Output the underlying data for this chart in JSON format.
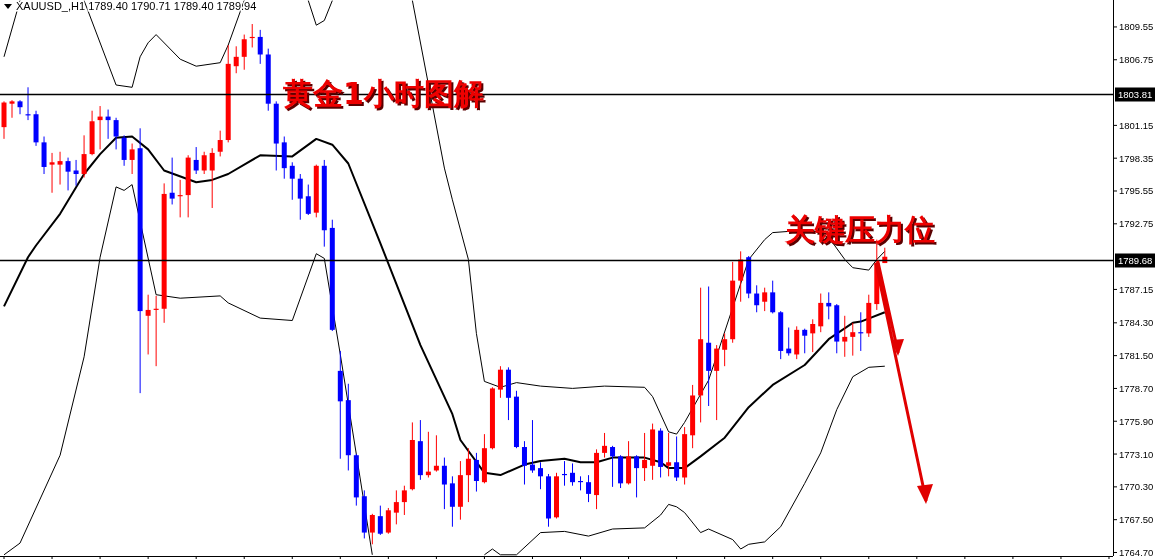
{
  "chart_data": {
    "type": "candlestick",
    "title": "XAUUSD_,H1  1789.40 1790.71 1789.40 1789.94",
    "annotations": [
      "黄金1小时图解",
      "关键压力位"
    ],
    "categories": [
      null,
      null,
      null,
      null,
      null,
      null,
      null,
      null,
      null,
      null,
      null,
      null,
      null,
      null,
      null,
      null,
      null,
      null,
      null,
      null,
      null,
      null,
      null,
      null,
      null,
      null,
      null,
      null,
      null,
      null,
      null,
      null,
      null,
      null,
      null,
      null,
      null,
      null,
      null,
      null,
      null,
      null,
      null,
      null,
      null,
      null,
      null,
      null,
      null,
      null,
      null,
      null,
      null,
      null,
      null,
      null,
      null,
      null,
      null,
      null,
      null,
      null,
      null,
      null,
      null,
      null,
      null,
      null,
      null,
      null,
      null,
      null,
      null,
      null,
      null,
      null,
      null,
      null,
      null,
      null,
      null,
      null,
      null,
      null,
      null,
      null,
      null,
      null,
      null,
      null,
      null,
      null,
      null,
      null,
      null,
      null,
      null,
      null,
      null,
      null,
      null,
      null,
      null,
      null,
      null,
      null,
      null,
      null,
      null,
      null,
      null,
      null,
      null,
      null,
      null,
      null,
      null,
      null,
      null,
      null,
      null,
      null,
      null,
      null,
      null,
      null,
      null,
      null,
      null,
      null,
      null,
      null,
      null,
      null,
      null,
      null,
      null,
      null,
      null
    ],
    "ohlc": [
      [
        1801.0,
        1803.2,
        1800.0,
        1803.1
      ],
      [
        1803.0,
        1803.3,
        1801.8,
        1803.2
      ],
      [
        1803.2,
        1803.3,
        1802.1,
        1802.7
      ],
      [
        1802.1,
        1804.4,
        1801.6,
        1802.0
      ],
      [
        1802.1,
        1802.4,
        1799.4,
        1799.7
      ],
      [
        1799.7,
        1800.2,
        1797.0,
        1797.6
      ],
      [
        1797.8,
        1798.8,
        1795.4,
        1798.0
      ],
      [
        1797.8,
        1798.9,
        1796.1,
        1798.1
      ],
      [
        1798.1,
        1798.4,
        1795.6,
        1797.2
      ],
      [
        1797.3,
        1798.2,
        1796.0,
        1797.0
      ],
      [
        1797.0,
        1800.3,
        1796.7,
        1798.7
      ],
      [
        1798.7,
        1802.4,
        1798.6,
        1801.5
      ],
      [
        1801.6,
        1802.8,
        1799.1,
        1801.9
      ],
      [
        1801.9,
        1802.5,
        1800.0,
        1801.6
      ],
      [
        1801.6,
        1801.8,
        1799.1,
        1800.2
      ],
      [
        1800.1,
        1800.3,
        1797.7,
        1798.2
      ],
      [
        1798.2,
        1799.6,
        1797.0,
        1799.1
      ],
      [
        1799.2,
        1800.9,
        1778.3,
        1785.3
      ],
      [
        1784.9,
        1786.7,
        1781.6,
        1785.4
      ],
      [
        1785.4,
        1786.6,
        1780.6,
        1785.5
      ],
      [
        1785.5,
        1796.2,
        1784.3,
        1795.3
      ],
      [
        1795.4,
        1798.4,
        1794.4,
        1794.9
      ],
      [
        1795.1,
        1796.5,
        1793.3,
        1795.2
      ],
      [
        1795.2,
        1798.6,
        1793.3,
        1798.4
      ],
      [
        1798.2,
        1799.3,
        1797.0,
        1797.3
      ],
      [
        1797.3,
        1798.9,
        1797.0,
        1798.6
      ],
      [
        1797.3,
        1799.2,
        1794.1,
        1798.8
      ],
      [
        1798.9,
        1800.7,
        1798.5,
        1799.9
      ],
      [
        1799.9,
        1808.0,
        1799.7,
        1806.4
      ],
      [
        1806.2,
        1807.9,
        1805.6,
        1807.0
      ],
      [
        1807.0,
        1808.9,
        1805.9,
        1808.5
      ],
      [
        1808.6,
        1809.8,
        1807.8,
        1808.7
      ],
      [
        1808.7,
        1809.3,
        1806.4,
        1807.2
      ],
      [
        1807.2,
        1807.7,
        1802.4,
        1803.0
      ],
      [
        1803.0,
        1803.2,
        1797.3,
        1799.6
      ],
      [
        1799.7,
        1800.2,
        1796.6,
        1797.5
      ],
      [
        1797.7,
        1798.0,
        1794.8,
        1796.6
      ],
      [
        1796.6,
        1797.0,
        1793.1,
        1794.9
      ],
      [
        1795.1,
        1796.1,
        1793.5,
        1793.6
      ],
      [
        1793.7,
        1797.8,
        1793.3,
        1797.7
      ],
      [
        1797.7,
        1798.2,
        1790.8,
        1792.2
      ],
      [
        1792.4,
        1793.1,
        1783.6,
        1783.7
      ],
      [
        1780.2,
        1781.9,
        1772.7,
        1777.6
      ],
      [
        1777.7,
        1779.1,
        1771.7,
        1773.0
      ],
      [
        1773.0,
        1773.1,
        1768.7,
        1769.4
      ],
      [
        1769.5,
        1770.0,
        1765.9,
        1766.4
      ],
      [
        1766.4,
        1768.0,
        1765.4,
        1767.9
      ],
      [
        1767.8,
        1768.7,
        1766.2,
        1766.3
      ],
      [
        1766.4,
        1768.5,
        1766.3,
        1768.3
      ],
      [
        1768.1,
        1770.0,
        1767.1,
        1769.0
      ],
      [
        1769.0,
        1770.4,
        1767.9,
        1770.0
      ],
      [
        1770.1,
        1775.8,
        1770.0,
        1774.3
      ],
      [
        1774.2,
        1776.0,
        1770.9,
        1771.3
      ],
      [
        1771.3,
        1775.0,
        1771.1,
        1771.6
      ],
      [
        1771.7,
        1774.7,
        1771.6,
        1772.1
      ],
      [
        1772.1,
        1772.8,
        1768.4,
        1770.5
      ],
      [
        1770.6,
        1771.2,
        1766.9,
        1768.6
      ],
      [
        1768.6,
        1772.5,
        1767.5,
        1771.3
      ],
      [
        1771.3,
        1773.6,
        1769.0,
        1772.7
      ],
      [
        1772.6,
        1773.2,
        1769.9,
        1770.8
      ],
      [
        1770.7,
        1774.8,
        1770.6,
        1773.6
      ],
      [
        1773.6,
        1778.8,
        1773.5,
        1778.7
      ],
      [
        1778.6,
        1780.6,
        1777.9,
        1780.3
      ],
      [
        1780.3,
        1780.5,
        1776.0,
        1777.9
      ],
      [
        1778.0,
        1778.5,
        1773.6,
        1773.7
      ],
      [
        1773.7,
        1774.2,
        1770.5,
        1772.1
      ],
      [
        1772.2,
        1776.0,
        1771.5,
        1771.7
      ],
      [
        1771.9,
        1772.4,
        1770.1,
        1771.2
      ],
      [
        1771.2,
        1771.4,
        1766.9,
        1767.6
      ],
      [
        1767.7,
        1771.5,
        1767.6,
        1771.2
      ],
      [
        1771.4,
        1772.5,
        1770.4,
        1771.3
      ],
      [
        1771.5,
        1772.3,
        1770.4,
        1770.7
      ],
      [
        1770.8,
        1771.2,
        1770.0,
        1770.7
      ],
      [
        1770.7,
        1771.3,
        1769.0,
        1769.7
      ],
      [
        1769.6,
        1773.5,
        1768.4,
        1773.2
      ],
      [
        1773.2,
        1774.9,
        1772.8,
        1773.8
      ],
      [
        1773.7,
        1773.8,
        1770.3,
        1772.9
      ],
      [
        1772.9,
        1773.0,
        1770.2,
        1770.6
      ],
      [
        1770.6,
        1774.2,
        1770.5,
        1772.9
      ],
      [
        1772.9,
        1773.0,
        1769.4,
        1771.9
      ],
      [
        1771.9,
        1774.9,
        1770.8,
        1772.6
      ],
      [
        1772.1,
        1775.7,
        1770.9,
        1775.2
      ],
      [
        1775.1,
        1775.3,
        1771.1,
        1772.0
      ],
      [
        1772.1,
        1774.9,
        1771.2,
        1772.4
      ],
      [
        1772.4,
        1774.6,
        1770.8,
        1771.1
      ],
      [
        1771.1,
        1775.4,
        1770.5,
        1774.8
      ],
      [
        1774.7,
        1779.0,
        1773.6,
        1778.1
      ],
      [
        1778.1,
        1787.3,
        1775.8,
        1782.9
      ],
      [
        1782.6,
        1787.4,
        1777.2,
        1780.2
      ],
      [
        1780.2,
        1782.4,
        1776.0,
        1782.1
      ],
      [
        1782.0,
        1783.4,
        1780.6,
        1782.9
      ],
      [
        1782.9,
        1789.5,
        1782.6,
        1787.9
      ],
      [
        1787.9,
        1790.4,
        1786.1,
        1789.7
      ],
      [
        1789.9,
        1790.0,
        1786.4,
        1786.8
      ],
      [
        1786.8,
        1787.5,
        1785.2,
        1785.8
      ],
      [
        1786.1,
        1787.3,
        1785.3,
        1786.9
      ],
      [
        1786.9,
        1787.9,
        1785.1,
        1785.2
      ],
      [
        1785.2,
        1785.3,
        1781.2,
        1781.9
      ],
      [
        1782.1,
        1783.9,
        1781.5,
        1781.7
      ],
      [
        1781.6,
        1784.0,
        1781.2,
        1783.7
      ],
      [
        1783.7,
        1783.8,
        1781.7,
        1783.2
      ],
      [
        1783.4,
        1784.6,
        1781.8,
        1784.2
      ],
      [
        1784.0,
        1786.8,
        1783.5,
        1786.0
      ],
      [
        1786.0,
        1786.9,
        1784.6,
        1785.7
      ],
      [
        1785.8,
        1785.9,
        1781.7,
        1782.7
      ],
      [
        1782.7,
        1784.9,
        1781.4,
        1783.1
      ],
      [
        1783.1,
        1784.3,
        1781.5,
        1783.5
      ],
      [
        1783.5,
        1785.2,
        1781.9,
        1783.4
      ],
      [
        1783.4,
        1786.7,
        1783.1,
        1786.0
      ],
      [
        1785.9,
        1791.4,
        1785.4,
        1789.4
      ],
      [
        1789.4,
        1790.71,
        1789.4,
        1789.94
      ],
      null,
      null,
      null,
      null,
      null,
      null,
      null,
      null,
      null,
      null,
      null,
      null,
      null,
      null,
      null,
      null,
      null,
      null,
      null,
      null,
      null,
      null,
      null,
      null,
      null,
      null,
      null,
      null
    ],
    "colors": [
      "#ff0000",
      "#ff0000",
      "#0000ff",
      "#0000ff",
      "#0000ff",
      "#0000ff",
      "#ff0000",
      "#ff0000",
      "#0000ff",
      "#0000ff",
      "#ff0000",
      "#ff0000",
      "#ff0000",
      "#0000ff",
      "#0000ff",
      "#0000ff",
      "#ff0000",
      "#0000ff",
      "#ff0000",
      "#ff0000",
      "#ff0000",
      "#0000ff",
      "#ff0000",
      "#ff0000",
      "#0000ff",
      "#ff0000",
      "#ff0000",
      "#ff0000",
      "#ff0000",
      "#ff0000",
      "#ff0000",
      "#ff0000",
      "#0000ff",
      "#0000ff",
      "#0000ff",
      "#0000ff",
      "#0000ff",
      "#0000ff",
      "#0000ff",
      "#ff0000",
      "#0000ff",
      "#0000ff",
      "#0000ff",
      "#0000ff",
      "#0000ff",
      "#0000ff",
      "#ff0000",
      "#0000ff",
      "#ff0000",
      "#ff0000",
      "#ff0000",
      "#ff0000",
      "#0000ff",
      "#ff0000",
      "#ff0000",
      "#0000ff",
      "#0000ff",
      "#ff0000",
      "#ff0000",
      "#0000ff",
      "#ff0000",
      "#ff0000",
      "#ff0000",
      "#0000ff",
      "#0000ff",
      "#0000ff",
      "#0000ff",
      "#0000ff",
      "#0000ff",
      "#ff0000",
      "#0000ff",
      "#0000ff",
      "#0000ff",
      "#0000ff",
      "#ff0000",
      "#ff0000",
      "#0000ff",
      "#0000ff",
      "#ff0000",
      "#0000ff",
      "#ff0000",
      "#ff0000",
      "#0000ff",
      "#ff0000",
      "#0000ff",
      "#ff0000",
      "#ff0000",
      "#ff0000",
      "#0000ff",
      "#ff0000",
      "#ff0000",
      "#ff0000",
      "#ff0000",
      "#0000ff",
      "#0000ff",
      "#ff0000",
      "#0000ff",
      "#0000ff",
      "#0000ff",
      "#ff0000",
      "#0000ff",
      "#ff0000",
      "#ff0000",
      "#0000ff",
      "#0000ff",
      "#ff0000",
      "#ff0000",
      "#0000ff",
      "#ff0000",
      "#ff0000",
      "#ff0000",
      null,
      null,
      null,
      null,
      null,
      null,
      null,
      null,
      null,
      null,
      null,
      null,
      null,
      null,
      null,
      null,
      null,
      null,
      null,
      null,
      null,
      null,
      null,
      null,
      null,
      null,
      null,
      null
    ],
    "series": [
      {
        "type": "line",
        "color": "#000000",
        "values": [
          1785.7,
          null,
          null,
          1789.9,
          1790.9,
          null,
          null,
          1793.6,
          null,
          null,
          1797.0,
          null,
          1798.7,
          null,
          1800.1,
          null,
          1800.2,
          null,
          1799.1,
          null,
          1797.3,
          null,
          null,
          null,
          1796.3,
          null,
          1796.5,
          null,
          1797.0,
          null,
          null,
          null,
          1798.6,
          null,
          null,
          null,
          1798.5,
          null,
          null,
          1800.0,
          null,
          1799.5,
          null,
          1797.9,
          null,
          null,
          null,
          1791.1,
          null,
          null,
          null,
          null,
          1782.4,
          null,
          null,
          null,
          1776.5,
          1774.3,
          null,
          null,
          1771.5,
          null,
          1771.3,
          null,
          null,
          1772.2,
          null,
          1772.5,
          null,
          null,
          1772.7,
          null,
          1772.4,
          null,
          1772.4,
          null,
          1772.8,
          null,
          null,
          null,
          1772.8,
          null,
          1772.4,
          1771.9,
          null,
          1771.9,
          null,
          1772.9,
          null,
          null,
          1774.5,
          null,
          null,
          1777.1,
          null,
          null,
          1779.0,
          null,
          null,
          null,
          1780.7,
          null,
          null,
          1782.9,
          null,
          null,
          1784.3,
          1784.4,
          null,
          null,
          1785.2,
          null,
          null,
          null,
          null,
          null,
          null,
          null,
          null,
          null,
          null,
          null,
          null,
          null,
          null,
          null,
          null,
          null,
          null,
          null,
          null,
          null,
          null,
          null,
          null,
          null,
          null,
          null,
          null
        ]
      },
      {
        "type": "line",
        "color": "#000000",
        "values": [
          1807.0,
          null,
          1811.8,
          null,
          null,
          null,
          null,
          null,
          null,
          null,
          null,
          null,
          null,
          null,
          null,
          null,
          null,
          null,
          null,
          null,
          null,
          null,
          null,
          null,
          null,
          null,
          null,
          null,
          null,
          null,
          null,
          null,
          null,
          null,
          null,
          null,
          null,
          null,
          null,
          null,
          null,
          null,
          null,
          null,
          null,
          null,
          null,
          null,
          null,
          null,
          null,
          null,
          null,
          null,
          null,
          null,
          null,
          null,
          null,
          null,
          null,
          null,
          null,
          null,
          null,
          null,
          null,
          null,
          null,
          null,
          null,
          null,
          null,
          null,
          null,
          null,
          null,
          null,
          null,
          null,
          null,
          null,
          null,
          null,
          null,
          null,
          null,
          null,
          null,
          null,
          null,
          null,
          null,
          null,
          null,
          null,
          null,
          null,
          null,
          null,
          null,
          null,
          null,
          null,
          null,
          null,
          null,
          null,
          null,
          null,
          null,
          null,
          null,
          null,
          null,
          null,
          null,
          null,
          null,
          null,
          null,
          null,
          null,
          null,
          null,
          null,
          null,
          null,
          null,
          null,
          null,
          null,
          null,
          null,
          null,
          null,
          null,
          null,
          null
        ]
      },
      {
        "type": "line",
        "color": "#000000",
        "values": [
          null,
          null,
          null,
          null,
          null,
          null,
          null,
          null,
          null,
          null,
          1811.8,
          null,
          null,
          null,
          1804.6,
          null,
          1804.4,
          1807.0,
          1808.2,
          1808.9,
          null,
          null,
          1806.8,
          null,
          1806.2,
          null,
          null,
          1806.5,
          1808.0,
          null,
          1811.8,
          null,
          null,
          null,
          null,
          null,
          null,
          null,
          null,
          null,
          null,
          null,
          null,
          null,
          null,
          null,
          null,
          null,
          null,
          null,
          null,
          null,
          null,
          null,
          null,
          null,
          null,
          null,
          null,
          null,
          null,
          null,
          null,
          null,
          null,
          null,
          null,
          null,
          null,
          null,
          null,
          null,
          null,
          null,
          null,
          null,
          null,
          null,
          null,
          null,
          null,
          null,
          null,
          null,
          null,
          null,
          null,
          null,
          null,
          null,
          null,
          null,
          null,
          null,
          null,
          null,
          null,
          null,
          null,
          null,
          null,
          null,
          null,
          null,
          null,
          null,
          null,
          null,
          null,
          null,
          null,
          null,
          null,
          null,
          null,
          null,
          null,
          null,
          null,
          null,
          null,
          null,
          null,
          null,
          null,
          null,
          null,
          null,
          null,
          null,
          null,
          null,
          null,
          null,
          null,
          null,
          null,
          null,
          null
        ]
      },
      {
        "type": "line",
        "color": "#000000",
        "values": [
          null,
          null,
          null,
          null,
          null,
          null,
          null,
          null,
          null,
          null,
          null,
          null,
          null,
          null,
          null,
          null,
          null,
          null,
          null,
          null,
          null,
          null,
          null,
          null,
          null,
          null,
          null,
          null,
          null,
          null,
          null,
          null,
          null,
          null,
          null,
          null,
          null,
          null,
          1811.8,
          1809.7,
          1810.1,
          1811.8,
          null,
          null,
          null,
          null,
          null,
          null,
          null,
          null,
          null,
          null,
          null,
          null,
          null,
          null,
          null,
          null,
          null,
          null,
          null,
          null,
          null,
          null,
          null,
          null,
          null,
          null,
          null,
          null,
          null,
          null,
          null,
          null,
          null,
          null,
          null,
          null,
          null,
          null,
          null,
          null,
          null,
          null,
          null,
          null,
          null,
          null,
          null,
          null,
          null,
          null,
          null,
          null,
          null,
          null,
          null,
          null,
          null,
          null,
          null,
          null,
          null,
          null,
          null,
          null,
          null,
          null,
          null,
          null,
          null,
          null,
          null,
          null,
          null,
          null,
          null,
          null,
          null,
          null,
          null,
          null,
          null,
          null,
          null,
          null,
          null,
          null,
          null,
          null,
          null,
          null,
          null,
          null,
          null,
          null,
          null,
          null,
          null
        ]
      },
      {
        "type": "line",
        "color": "#000000",
        "values": [
          null,
          null,
          null,
          null,
          null,
          null,
          null,
          null,
          null,
          null,
          null,
          null,
          null,
          null,
          null,
          null,
          null,
          null,
          null,
          null,
          null,
          null,
          null,
          null,
          null,
          null,
          null,
          null,
          null,
          null,
          null,
          null,
          null,
          null,
          null,
          null,
          null,
          null,
          null,
          null,
          null,
          null,
          null,
          null,
          null,
          null,
          null,
          null,
          null,
          null,
          null,
          1811.8,
          null,
          null,
          null,
          1797.5,
          1794.8,
          null,
          1789.7,
          1783.4,
          1779.3,
          null,
          1778.8,
          null,
          1779.2,
          null,
          null,
          1778.9,
          null,
          null,
          null,
          1778.7,
          null,
          null,
          null,
          1778.9,
          null,
          null,
          null,
          null,
          1778.8,
          1778.0,
          null,
          1775.0,
          1774.8,
          1775.8,
          null,
          null,
          1779.4,
          null,
          null,
          null,
          null,
          1789.7,
          null,
          1791.4,
          1792.0,
          null,
          1792.1,
          null,
          null,
          1792.2,
          null,
          1791.6,
          null,
          1789.7,
          1789.0,
          null,
          1788.8,
          1789.7,
          1790.4,
          null,
          null,
          null,
          null,
          null,
          null,
          null,
          null,
          null,
          null,
          null,
          null,
          null,
          null,
          null,
          null,
          null,
          null,
          null,
          null,
          null,
          null,
          null,
          null,
          null,
          null,
          null,
          null
        ]
      },
      {
        "type": "line",
        "color": "#000000",
        "values": [
          1764.5,
          null,
          1765.5,
          null,
          null,
          null,
          null,
          1773.0,
          null,
          null,
          1781.4,
          null,
          1789.9,
          null,
          1795.9,
          1795.6,
          1796.1,
          null,
          null,
          1786.7,
          null,
          null,
          1786.4,
          null,
          null,
          null,
          null,
          1786.6,
          1786.0,
          null,
          null,
          null,
          1784.7,
          null,
          null,
          null,
          1784.5,
          null,
          null,
          1790.2,
          1789.8,
          null,
          1781.6,
          null,
          1773.1,
          null,
          1764.5,
          null,
          null,
          null,
          null,
          null,
          null,
          null,
          null,
          null,
          null,
          null,
          null,
          null,
          null,
          null,
          null,
          null,
          null,
          null,
          null,
          null,
          null,
          null,
          null,
          null,
          null,
          null,
          null,
          null,
          null,
          null,
          null,
          null,
          null,
          null,
          null,
          null,
          null,
          null,
          null,
          null,
          null,
          null,
          null,
          null,
          null,
          null,
          null,
          null,
          null,
          null,
          null,
          null,
          null,
          null,
          null,
          null,
          null,
          null,
          null,
          null,
          null,
          null,
          null,
          null,
          null,
          null,
          null,
          null,
          null,
          null,
          null,
          null,
          null,
          null,
          null,
          null,
          null,
          null,
          null,
          null,
          null,
          null,
          null,
          null,
          null,
          null,
          null,
          null,
          null,
          null,
          null
        ]
      },
      {
        "type": "line",
        "color": "#000000",
        "values": [
          null,
          null,
          null,
          null,
          null,
          null,
          null,
          null,
          null,
          null,
          null,
          null,
          null,
          null,
          null,
          null,
          null,
          null,
          null,
          null,
          null,
          null,
          null,
          null,
          null,
          null,
          null,
          null,
          null,
          null,
          null,
          null,
          null,
          null,
          null,
          null,
          null,
          null,
          null,
          null,
          null,
          null,
          null,
          null,
          null,
          null,
          null,
          null,
          null,
          null,
          null,
          null,
          null,
          null,
          null,
          null,
          null,
          null,
          null,
          null,
          1764.5,
          1765.0,
          1764.5,
          null,
          1764.5,
          null,
          null,
          1766.4,
          null,
          null,
          1766.5,
          null,
          null,
          1766.1,
          null,
          null,
          1766.7,
          null,
          null,
          null,
          1766.8,
          null,
          1767.9,
          1768.8,
          1768.6,
          1768.1,
          null,
          1766.4,
          1766.7,
          null,
          null,
          1765.8,
          1765.0,
          1765.4,
          null,
          1765.6,
          null,
          1766.9,
          null,
          null,
          1770.6,
          null,
          1773.2,
          null,
          1776.9,
          null,
          1779.7,
          null,
          1780.5,
          null,
          1780.6,
          null,
          null,
          null,
          null,
          null,
          null,
          null,
          null,
          null,
          null,
          null,
          null,
          null,
          null,
          null,
          null,
          null,
          null,
          null,
          null,
          null,
          null,
          null,
          null,
          null,
          null,
          null,
          null
        ]
      }
    ],
    "ylim": [
      1764.4,
      1811.85
    ],
    "yticks": [
      {
        "value": 1764.7,
        "label": "1764.70"
      },
      {
        "value": 1767.5,
        "label": "1767.50"
      },
      {
        "value": 1770.3,
        "label": "1770.30"
      },
      {
        "value": 1773.1,
        "label": "1773.10"
      },
      {
        "value": 1775.9,
        "label": "1775.90"
      },
      {
        "value": 1778.7,
        "label": "1778.70"
      },
      {
        "value": 1781.5,
        "label": "1781.50"
      },
      {
        "value": 1784.3,
        "label": "1784.30"
      },
      1787.15,
      1792.75,
      1795.55,
      {
        "value": 1798.35,
        "label": "1798.35"
      },
      1801.15,
      1806.75,
      1809.55
    ],
    "ref_lines": [
      {
        "axis": "y",
        "value": 1803.81,
        "label": "1803.81",
        "color": "#000000"
      },
      {
        "axis": "y",
        "value": 1789.68,
        "label": "1789.68",
        "color": "#000000"
      }
    ],
    "tick_labels": "y",
    "grid": false
  }
}
